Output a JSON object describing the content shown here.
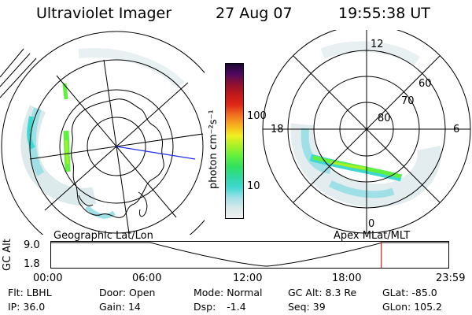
{
  "header": {
    "instrument": "Ultraviolet Imager",
    "date": "27 Aug 07",
    "time": "19:55:38 UT"
  },
  "left_panel": {
    "label": "Geographic Lat/Lon",
    "auroral_oval": "true"
  },
  "right_panel": {
    "label": "Apex MLat/MLT",
    "lat_labels": [
      "60",
      "70",
      "80"
    ],
    "mlt_labels": {
      "top": "12",
      "left": "18",
      "right": "6",
      "bottom": "0"
    }
  },
  "colorbar": {
    "unit": "photon cm⁻²s⁻¹",
    "ticks": [
      "100",
      "10"
    ],
    "scale": "log",
    "colors": [
      "#f0f0f0",
      "#d8e8ea",
      "#9fe0e6",
      "#3fd8d0",
      "#30d8a0",
      "#30e060",
      "#60f040",
      "#a8f028",
      "#f0f020",
      "#f8b020",
      "#f07020",
      "#e02818",
      "#c01818",
      "#901030",
      "#500860",
      "#1a0830"
    ]
  },
  "timeline": {
    "axis_label": "GC Alt",
    "y_ticks": [
      "9.0",
      "1.8"
    ],
    "x_ticks": [
      "00:00",
      "06:00",
      "12:00",
      "18:00",
      "23:59"
    ],
    "current_marker_hours": 19.93,
    "altitude_min_hours": 13.0
  },
  "status": {
    "filter_label": "Flt:",
    "filter_value": "LBHL",
    "door_label": "Door:",
    "door_value": "Open",
    "mode_label": "Mode:",
    "mode_value": "Normal",
    "gc_alt_label": "GC Alt:",
    "gc_alt_value": "8.3 Re",
    "glat_label": "GLat:",
    "glat_value": "-85.0",
    "ip_label": "IP:",
    "ip_value": "36.0",
    "gain_label": "Gain:",
    "gain_value": "14",
    "dsp_label": "Dsp:",
    "dsp_value": "-1.4",
    "seq_label": "Seq:",
    "seq_value": "39",
    "glon_label": "GLon:",
    "glon_value": "105.2"
  }
}
